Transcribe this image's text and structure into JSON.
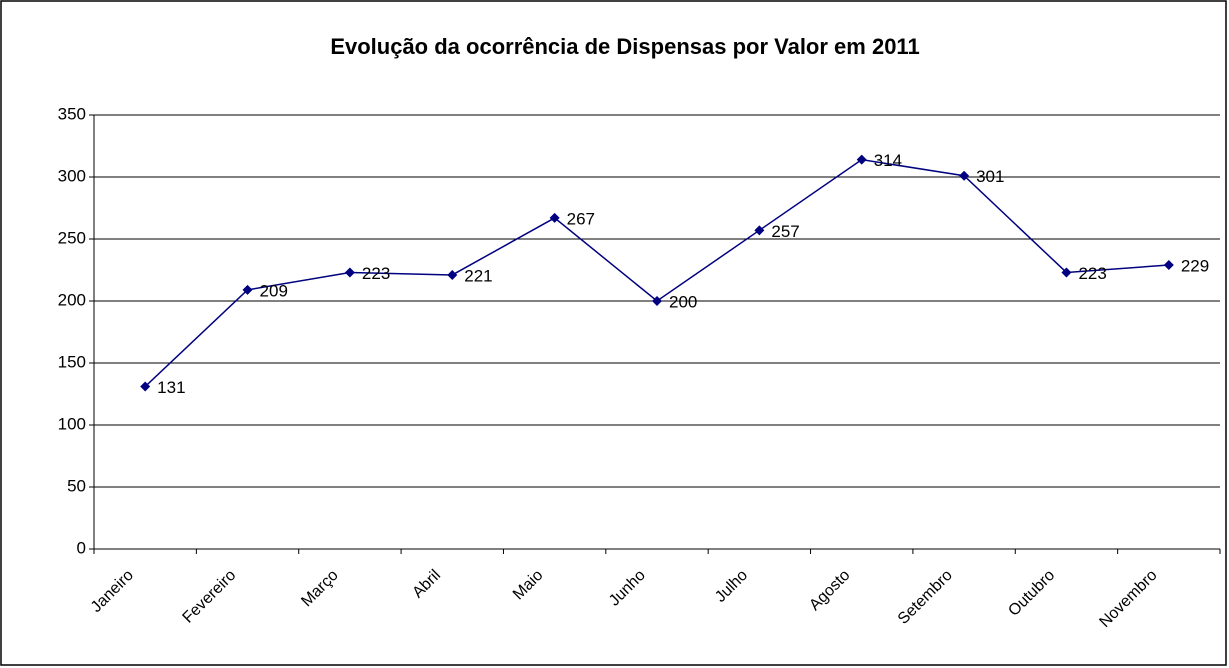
{
  "chart_data": {
    "type": "line",
    "title": "Evolução da ocorrência de Dispensas por Valor em 2011",
    "categories": [
      "Janeiro",
      "Fevereiro",
      "Março",
      "Abril",
      "Maio",
      "Junho",
      "Julho",
      "Agosto",
      "Setembro",
      "Outubro",
      "Novembro"
    ],
    "values": [
      131,
      209,
      223,
      221,
      267,
      200,
      257,
      314,
      301,
      223,
      229
    ],
    "color": "#000080",
    "ylim": [
      0,
      350
    ],
    "yticks": [
      0,
      50,
      100,
      150,
      200,
      250,
      300,
      350
    ],
    "grid": true
  }
}
